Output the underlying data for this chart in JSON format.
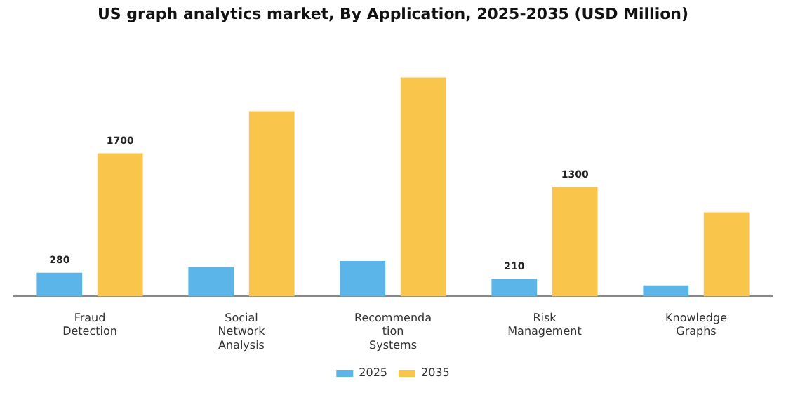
{
  "chart_data": {
    "type": "bar",
    "title": "US graph analytics market, By Application, 2025-2035 (USD Million)",
    "categories": [
      "Fraud Detection",
      "Social Network Analysis",
      "Recommendation Systems",
      "Risk Management",
      "Knowledge Graphs"
    ],
    "series": [
      {
        "name": "2025",
        "color": "#5bb5e8",
        "values": [
          280,
          350,
          420,
          210,
          130
        ],
        "value_labels": [
          "280",
          null,
          null,
          "210",
          null
        ]
      },
      {
        "name": "2035",
        "color": "#f9c54a",
        "values": [
          1700,
          2200,
          2600,
          1300,
          1000
        ],
        "value_labels": [
          "1700",
          null,
          null,
          "1300",
          null
        ]
      }
    ],
    "legend": "bottom"
  }
}
